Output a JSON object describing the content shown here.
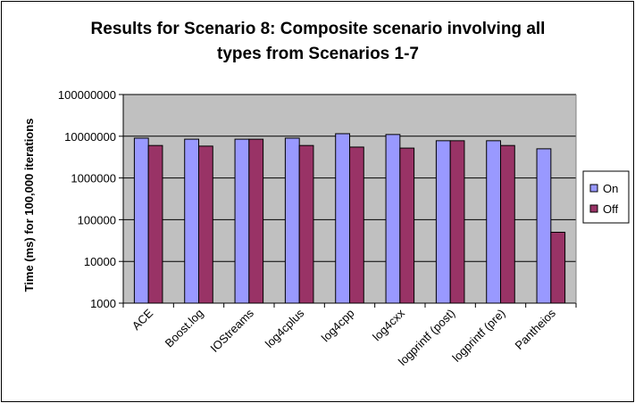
{
  "chart_data": {
    "type": "bar",
    "title_line1": "Results for Scenario 8: Composite scenario involving all",
    "title_line2": "types from Scenarios 1-7",
    "xlabel": "",
    "ylabel": "Time (ms) for 100,000 iterations",
    "yscale": "log",
    "ylim": [
      1000,
      100000000
    ],
    "yticks": [
      "1000",
      "10000",
      "100000",
      "1000000",
      "10000000",
      "100000000"
    ],
    "grid": true,
    "legend_position": "right",
    "categories": [
      "ACE",
      "Boost.log",
      "IOStreams",
      "log4cplus",
      "log4cpp",
      "log4cxx",
      "logprintf (post)",
      "logprintf (pre)",
      "Pantheios"
    ],
    "series": [
      {
        "name": "On",
        "color": "#9999ff",
        "values": [
          9000000,
          8500000,
          8500000,
          9000000,
          11500000,
          11000000,
          7800000,
          7800000,
          5000000
        ]
      },
      {
        "name": "Off",
        "color": "#993366",
        "values": [
          6000000,
          5800000,
          8500000,
          6000000,
          5500000,
          5200000,
          7800000,
          6000000,
          50000
        ]
      }
    ],
    "plot_background": "#c0c0c0"
  }
}
